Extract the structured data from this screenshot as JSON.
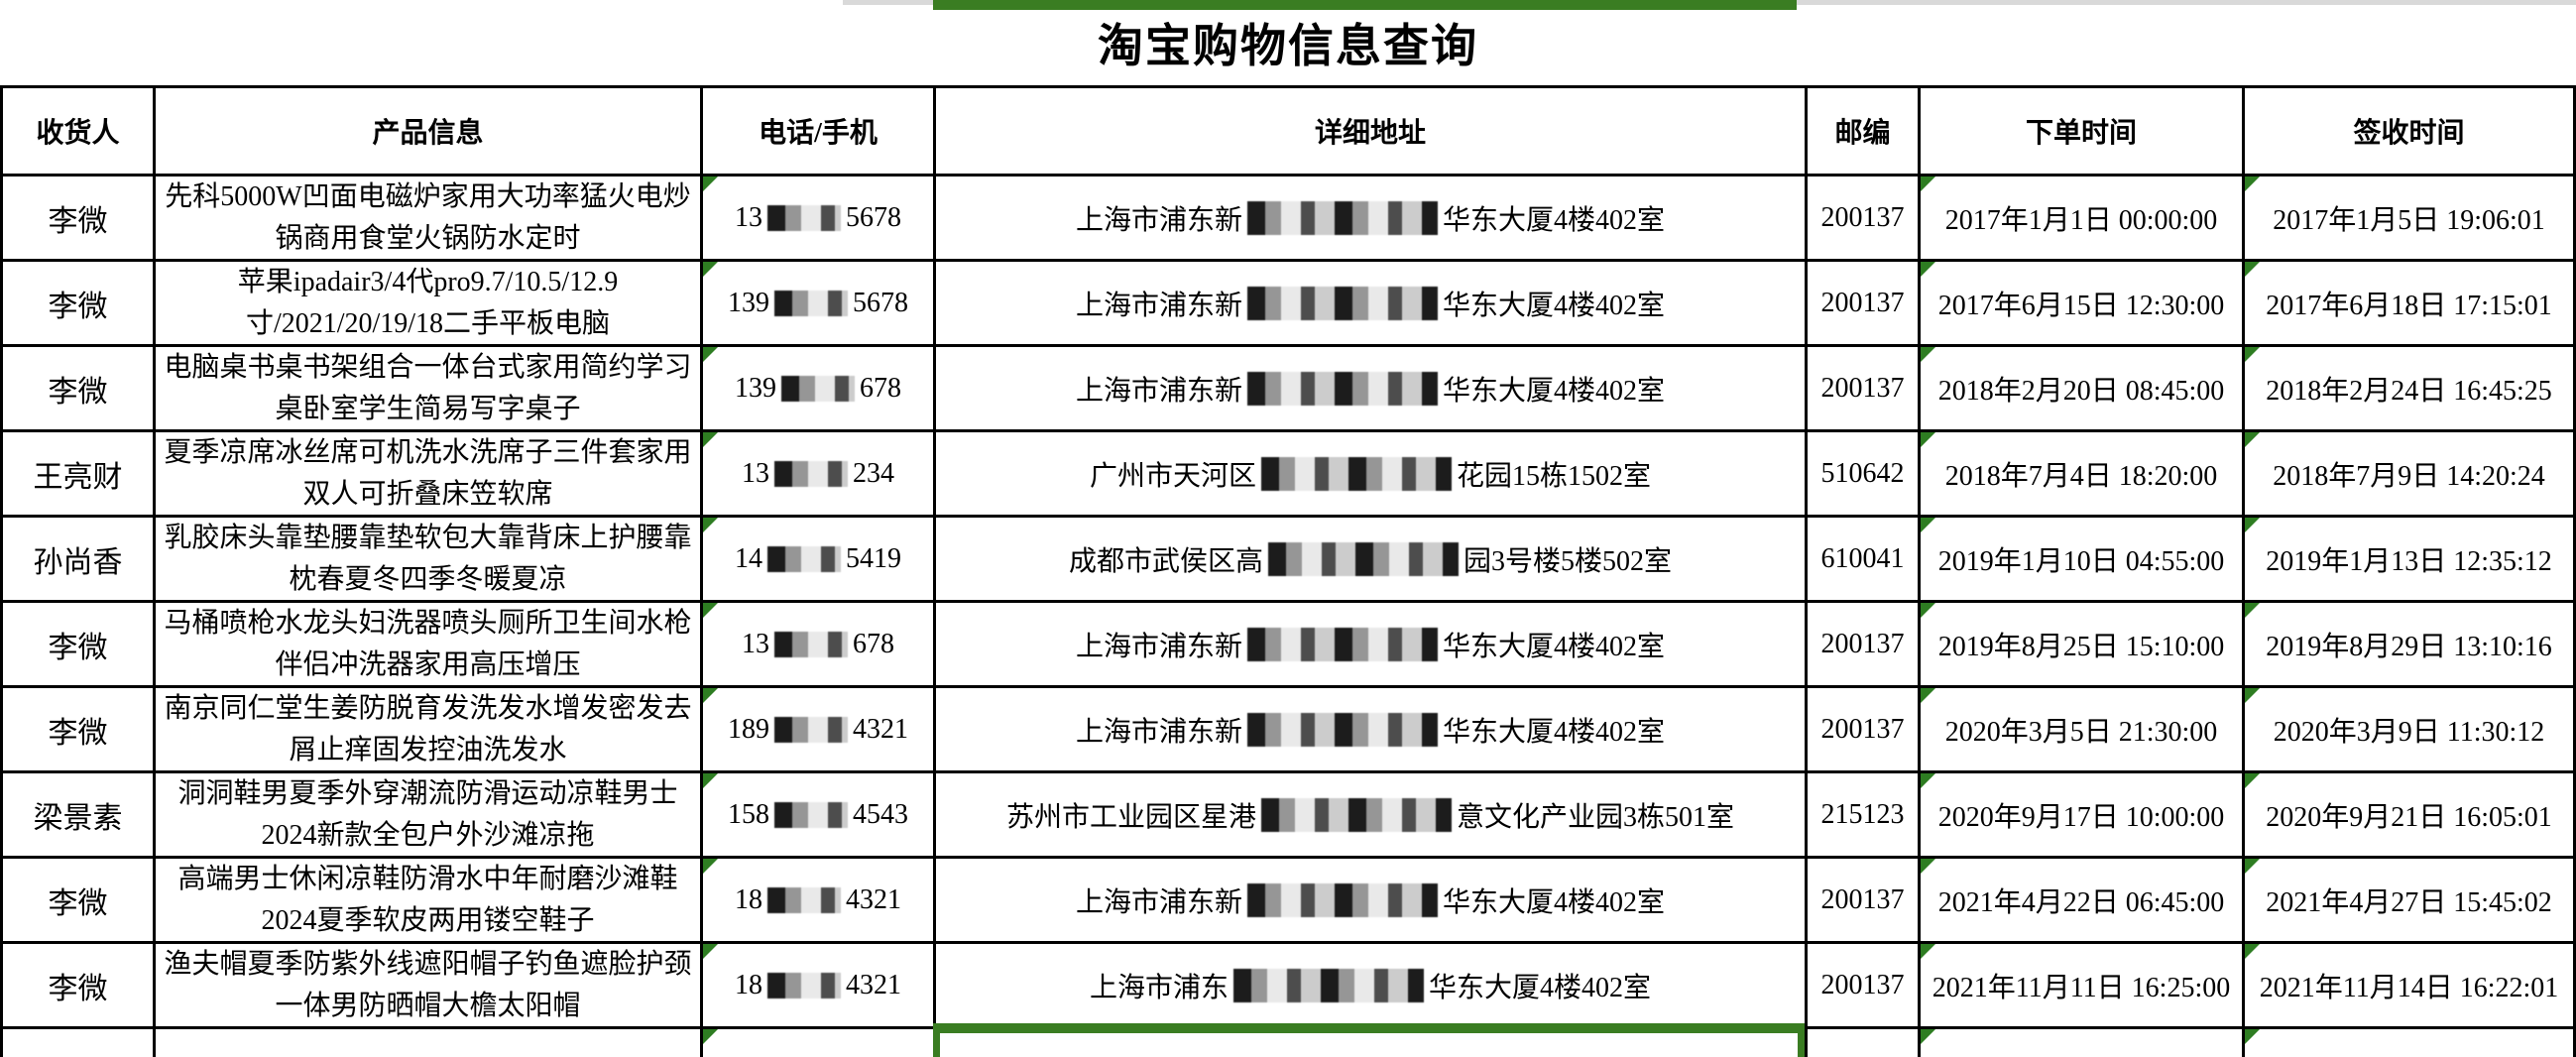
{
  "page": {
    "title": "淘宝购物信息查询"
  },
  "colors": {
    "selection_green": "#3a7d22",
    "triangle_green": "#2e7d22"
  },
  "icons": {
    "error_triangle": "excel-error-triangle-icon"
  },
  "table": {
    "headers": [
      "收货人",
      "产品信息",
      "电话/手机",
      "详细地址",
      "邮编",
      "下单时间",
      "签收时间"
    ],
    "rows": [
      {
        "recipient": "李微",
        "product": "先科5000W凹面电磁炉家用大功率猛火电炒锅商用食堂火锅防水定时",
        "phone_prefix": "13",
        "phone_suffix": "5678",
        "addr_prefix": "上海市浦东新",
        "addr_suffix": "华东大厦4楼402室",
        "zip": "200137",
        "order_time": "2017年1月1日 00:00:00",
        "sign_time": "2017年1月5日 19:06:01"
      },
      {
        "recipient": "李微",
        "product": "苹果ipadair3/4代pro9.7/10.5/12.9寸/2021/20/19/18二手平板电脑",
        "phone_prefix": "139",
        "phone_suffix": "5678",
        "addr_prefix": "上海市浦东新",
        "addr_suffix": "华东大厦4楼402室",
        "zip": "200137",
        "order_time": "2017年6月15日 12:30:00",
        "sign_time": "2017年6月18日 17:15:01"
      },
      {
        "recipient": "李微",
        "product": "电脑桌书桌书架组合一体台式家用简约学习桌卧室学生简易写字桌子",
        "phone_prefix": "139",
        "phone_suffix": "678",
        "addr_prefix": "上海市浦东新",
        "addr_suffix": "华东大厦4楼402室",
        "zip": "200137",
        "order_time": "2018年2月20日 08:45:00",
        "sign_time": "2018年2月24日 16:45:25"
      },
      {
        "recipient": "王亮财",
        "product": "夏季凉席冰丝席可机洗水洗席子三件套家用双人可折叠床笠软席",
        "phone_prefix": "13",
        "phone_suffix": "234",
        "addr_prefix": "广州市天河区",
        "addr_suffix": "花园15栋1502室",
        "zip": "510642",
        "order_time": "2018年7月4日 18:20:00",
        "sign_time": "2018年7月9日 14:20:24"
      },
      {
        "recipient": "孙尚香",
        "product": "乳胶床头靠垫腰靠垫软包大靠背床上护腰靠枕春夏冬四季冬暖夏凉",
        "phone_prefix": "14",
        "phone_suffix": "5419",
        "addr_prefix": "成都市武侯区高",
        "addr_suffix": "园3号楼5楼502室",
        "zip": "610041",
        "order_time": "2019年1月10日 04:55:00",
        "sign_time": "2019年1月13日 12:35:12"
      },
      {
        "recipient": "李微",
        "product": "马桶喷枪水龙头妇洗器喷头厕所卫生间水枪伴侣冲洗器家用高压增压",
        "phone_prefix": "13",
        "phone_suffix": "678",
        "addr_prefix": "上海市浦东新",
        "addr_suffix": "华东大厦4楼402室",
        "zip": "200137",
        "order_time": "2019年8月25日 15:10:00",
        "sign_time": "2019年8月29日 13:10:16"
      },
      {
        "recipient": "李微",
        "product": "南京同仁堂生姜防脱育发洗发水增发密发去屑止痒固发控油洗发水",
        "phone_prefix": "189",
        "phone_suffix": "4321",
        "addr_prefix": "上海市浦东新",
        "addr_suffix": "华东大厦4楼402室",
        "zip": "200137",
        "order_time": "2020年3月5日 21:30:00",
        "sign_time": "2020年3月9日 11:30:12"
      },
      {
        "recipient": "梁景素",
        "product": "洞洞鞋男夏季外穿潮流防滑运动凉鞋男士2024新款全包户外沙滩凉拖",
        "phone_prefix": "158",
        "phone_suffix": "4543",
        "addr_prefix": "苏州市工业园区星港",
        "addr_suffix": "意文化产业园3栋501室",
        "zip": "215123",
        "order_time": "2020年9月17日 10:00:00",
        "sign_time": "2020年9月21日 16:05:01"
      },
      {
        "recipient": "李微",
        "product": "高端男士休闲凉鞋防滑水中年耐磨沙滩鞋2024夏季软皮两用镂空鞋子",
        "phone_prefix": "18",
        "phone_suffix": "4321",
        "addr_prefix": "上海市浦东新",
        "addr_suffix": "华东大厦4楼402室",
        "zip": "200137",
        "order_time": "2021年4月22日 06:45:00",
        "sign_time": "2021年4月27日 15:45:02"
      },
      {
        "recipient": "李微",
        "product": "渔夫帽夏季防紫外线遮阳帽子钓鱼遮脸护颈一体男防晒帽大檐太阳帽",
        "phone_prefix": "18",
        "phone_suffix": "4321",
        "addr_prefix": "上海市浦东",
        "addr_suffix": "华东大厦4楼402室",
        "zip": "200137",
        "order_time": "2021年11月11日 16:25:00",
        "sign_time": "2021年11月14日 16:22:01"
      }
    ]
  }
}
